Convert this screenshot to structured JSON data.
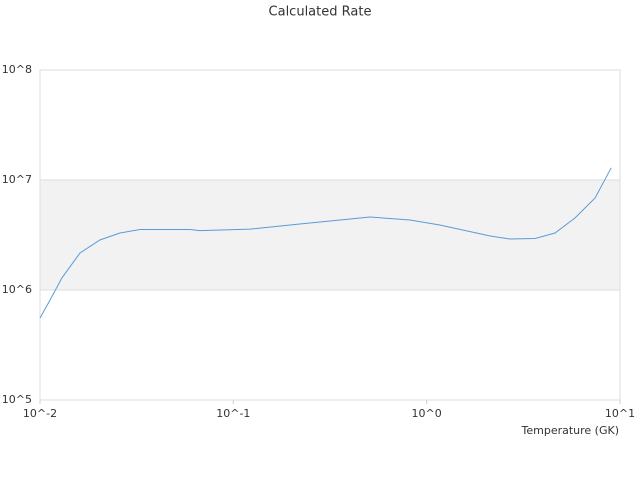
{
  "chart_data": {
    "type": "line",
    "title": "Calculated Rate",
    "x_label": "Temperature (GK)",
    "x": [
      0.01,
      0.01127,
      0.013,
      0.0161,
      0.0204,
      0.0259,
      0.0329,
      0.0597,
      0.0673,
      0.122,
      0.221,
      0.402,
      0.509,
      0.82,
      1.17,
      2.13,
      2.7,
      3.64,
      4.61,
      5.86,
      7.43,
      9.0
    ],
    "series": [
      {
        "color": "#5b9bd5",
        "values": [
          556000,
          810000,
          1290000,
          2170000,
          2850000,
          3300000,
          3550000,
          3550000,
          3470000,
          3580000,
          3980000,
          4420000,
          4610000,
          4330000,
          3900000,
          3100000,
          2910000,
          2940000,
          3300000,
          4520000,
          6860000,
          12900000
        ]
      }
    ],
    "xlog": true,
    "ylog": true,
    "xlim": [
      0.01,
      10
    ],
    "ylim": [
      100000,
      100000000
    ],
    "xticks": [
      {
        "value": 0.01,
        "label": "10^-2"
      },
      {
        "value": 0.1,
        "label": "10^-1"
      },
      {
        "value": 1,
        "label": "10^0"
      },
      {
        "value": 10,
        "label": "10^1"
      }
    ],
    "yticks": [
      {
        "value": 100000,
        "label": "10^5"
      },
      {
        "value": 1000000,
        "label": "10^6"
      },
      {
        "value": 10000000,
        "label": "10^7"
      },
      {
        "value": 100000000,
        "label": "10^8"
      }
    ],
    "grid": true,
    "band_color": "#f2f2f2"
  }
}
